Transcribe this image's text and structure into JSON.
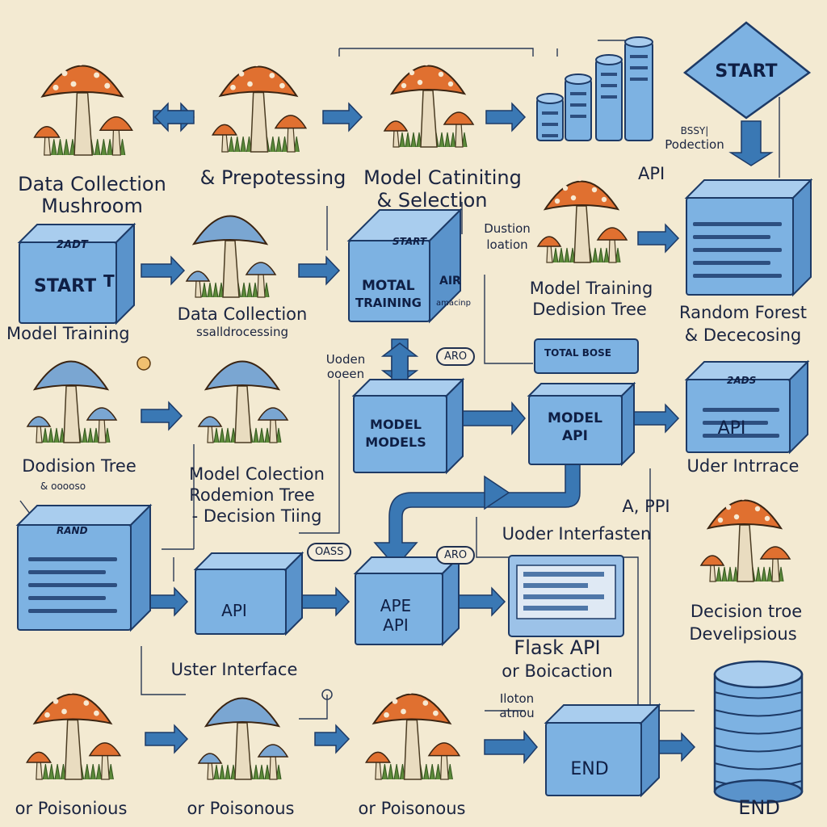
{
  "labels": {
    "data_collection_mushroom_1": "Data Collection",
    "data_collection_mushroom_2": "Mushroom",
    "preprocessing": "& Prepotessing",
    "model_selection_1": "Model Catiniting",
    "model_selection_2": "& Selection",
    "start_top": "START",
    "poduction_1": "BSSY|",
    "poduction_2": "Podection",
    "api_top": "API",
    "duction_1": "Dustion",
    "duction_2": "loation",
    "start_left": "START",
    "start_left_mark": "T",
    "start_left_header": "2ADT",
    "model_training_left": "Model Training",
    "data_collection_mid_1": "Data Collection",
    "data_collection_mid_2": "ssalldrocessing",
    "motal_header": "START",
    "motal_1": "MOTAL",
    "motal_2": "TRAINING",
    "motal_side_1": "AIR",
    "motal_side_2": "amacinp",
    "model_training_dt_1": "Model Training",
    "model_training_dt_2": "Dedision Tree",
    "random_forest_1": "Random Forest",
    "random_forest_2": "& Dececosing",
    "uoden_1": "Uoden",
    "uoden_2": "ooeen",
    "aro_pill": "ARO",
    "ticket_bar": "TOTAL BOSE",
    "model_models_1": "MODEL",
    "model_models_2": "MODELS",
    "model_api_1": "MODEL",
    "model_api_2": "API",
    "api_right": "API",
    "api_right_header": "2ADS",
    "dodision_tree": "Dodision Tree",
    "dodision_sub": "& ooooso",
    "model_collection_1": "Model Colection",
    "model_collection_2": "Rodemion Tree",
    "model_collection_3": "- Decision Tiing",
    "uder_intrace": "Uder Intrrace",
    "a_ppi": "A, PPI",
    "uoder_interfasten": "Uoder Interfasten",
    "oass_pill": "OASS",
    "aro_pill_2": "ARO",
    "api_lower": "API",
    "ape_api_1": "APE",
    "ape_api_2": "API",
    "decision_tree_dev_1": "Decision troe",
    "decision_tree_dev_2": "Develipsious",
    "flask_api_1": "Flask API",
    "flask_api_2": "or Boicaction",
    "uster_interface": "Uster Interface",
    "button_1": "Iloton",
    "button_2": "atnou",
    "end_block": "END",
    "end_db": "END",
    "poisonous_1": "or Poisonious",
    "poisonous_2": "or Poisonous",
    "poisonous_3": "or Poisonous",
    "rando_header": "RAND"
  },
  "colors": {
    "background": "#f3ead2",
    "block_face": "#7db2e2",
    "block_top": "#a9cdee",
    "block_side": "#5a93cb",
    "outline": "#1d3a66",
    "arrow": "#3a78b4",
    "mushroom_cap": "#e07030",
    "mushroom_cap_blue": "#7aa6d2",
    "stem": "#e9dcc0",
    "grass": "#5c8a3a"
  }
}
